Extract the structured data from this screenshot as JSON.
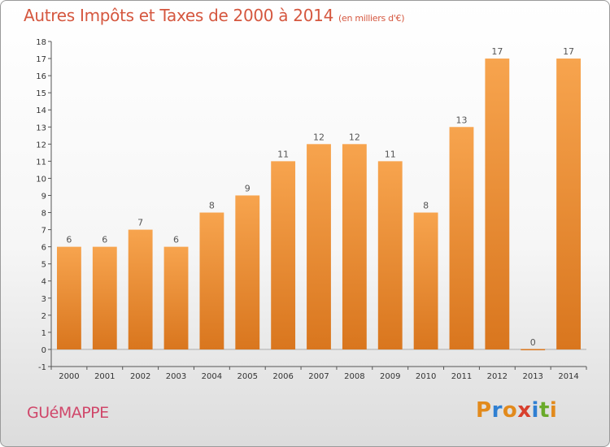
{
  "title": "Autres Impôts et Taxes de 2000 à 2014",
  "unit": "(en milliers d'€)",
  "commune": "GUéMAPPE",
  "logo": [
    "P",
    "r",
    "o",
    "x",
    "i",
    "t",
    "i"
  ],
  "logo_colors": [
    "#e28a1c",
    "#2f7fd2",
    "#e28a1c",
    "#d8402e",
    "#2f7fd2",
    "#6aaa2a",
    "#e28a1c"
  ],
  "colors": {
    "bar_top": "#f7a44e",
    "bar_bottom": "#d9761e",
    "title": "#d5573f",
    "commune": "#d0476a"
  },
  "chart_data": {
    "type": "bar",
    "categories": [
      "2000",
      "2001",
      "2002",
      "2003",
      "2004",
      "2005",
      "2006",
      "2007",
      "2008",
      "2009",
      "2010",
      "2011",
      "2012",
      "2013",
      "2014"
    ],
    "values": [
      6,
      6,
      7,
      6,
      8,
      9,
      11,
      12,
      12,
      11,
      8,
      13,
      17,
      0,
      17
    ],
    "data_labels": [
      "6",
      "6",
      "7",
      "6",
      "8",
      "9",
      "11",
      "12",
      "12",
      "11",
      "8",
      "13",
      "17",
      "0",
      "17"
    ],
    "ylim": [
      -1,
      18
    ],
    "yticks": [
      -1,
      0,
      1,
      2,
      3,
      4,
      5,
      6,
      7,
      8,
      9,
      10,
      11,
      12,
      13,
      14,
      15,
      16,
      17,
      18
    ],
    "grid": false,
    "legend": "none"
  }
}
